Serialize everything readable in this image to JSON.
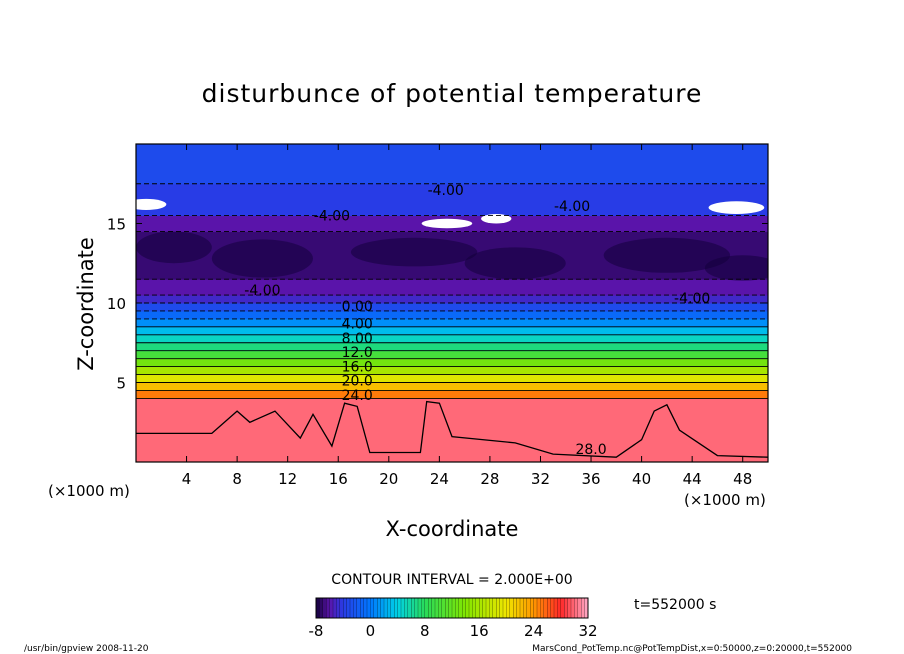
{
  "chart_data": {
    "type": "heatmap",
    "title": "disturbunce of potential temperature",
    "xlabel": "X-coordinate",
    "ylabel": "Z-coordinate",
    "x_unit_label": "(×1000 m)",
    "z_unit_label": "(×1000 m)",
    "xlim": [
      0,
      50
    ],
    "ylim": [
      0,
      20
    ],
    "x_ticks": [
      4,
      8,
      12,
      16,
      20,
      24,
      28,
      32,
      36,
      40,
      44,
      48
    ],
    "x_tick_labels": [
      "4",
      "8",
      "12",
      "16",
      "20",
      "24",
      "28",
      "32",
      "36",
      "40",
      "44",
      "48"
    ],
    "y_ticks": [
      5,
      10,
      15
    ],
    "y_tick_labels": [
      "5",
      "10",
      "15"
    ],
    "contour_interval_label": "CONTOUR INTERVAL = 2.000E+00",
    "contour_labels": [
      {
        "text": "-4.00",
        "x": 24.5,
        "z": 16.8
      },
      {
        "text": "-4.00",
        "x": 34.5,
        "z": 15.8
      },
      {
        "text": "-4.00",
        "x": 15.5,
        "z": 15.2
      },
      {
        "text": "-4.00",
        "x": 10.0,
        "z": 10.5
      },
      {
        "text": "-4.00",
        "x": 44.0,
        "z": 10.0
      },
      {
        "text": "0.00",
        "x": 17.5,
        "z": 9.5
      },
      {
        "text": "4.00",
        "x": 17.5,
        "z": 8.4
      },
      {
        "text": "8.00",
        "x": 17.5,
        "z": 7.5
      },
      {
        "text": "12.0",
        "x": 17.5,
        "z": 6.6
      },
      {
        "text": "16.0",
        "x": 17.5,
        "z": 5.7
      },
      {
        "text": "20.0",
        "x": 17.5,
        "z": 4.8
      },
      {
        "text": "24.0",
        "x": 17.5,
        "z": 3.9
      },
      {
        "text": "28.0",
        "x": 36.0,
        "z": 0.5
      }
    ],
    "strata": [
      {
        "z0": 0.0,
        "z1": 4.0,
        "value": 30
      },
      {
        "z0": 4.0,
        "z1": 4.5,
        "value": 25
      },
      {
        "z0": 4.5,
        "z1": 5.0,
        "value": 22
      },
      {
        "z0": 5.0,
        "z1": 5.5,
        "value": 19
      },
      {
        "z0": 5.5,
        "z1": 6.0,
        "value": 16
      },
      {
        "z0": 6.0,
        "z1": 6.5,
        "value": 13
      },
      {
        "z0": 6.5,
        "z1": 7.0,
        "value": 10
      },
      {
        "z0": 7.0,
        "z1": 7.5,
        "value": 7
      },
      {
        "z0": 7.5,
        "z1": 8.0,
        "value": 5
      },
      {
        "z0": 8.0,
        "z1": 8.5,
        "value": 3
      },
      {
        "z0": 8.5,
        "z1": 9.0,
        "value": 1
      },
      {
        "z0": 9.0,
        "z1": 9.5,
        "value": -1
      },
      {
        "z0": 9.5,
        "z1": 10.0,
        "value": -3
      },
      {
        "z0": 10.0,
        "z1": 10.5,
        "value": -5
      },
      {
        "z0": 10.5,
        "z1": 11.5,
        "value": -6
      },
      {
        "z0": 11.5,
        "z1": 14.5,
        "value": -7
      },
      {
        "z0": 14.5,
        "z1": 15.5,
        "value": -6
      },
      {
        "z0": 15.5,
        "z1": 17.5,
        "value": -4
      },
      {
        "z0": 17.5,
        "z1": 20.0,
        "value": -3
      }
    ],
    "colorbar": {
      "min": -8,
      "max": 32,
      "tick_values": [
        -8,
        0,
        8,
        16,
        24,
        32
      ],
      "tick_labels": [
        "-8",
        "0",
        "8",
        "16",
        "24",
        "32"
      ]
    },
    "grid": false,
    "time_label": "t=552000 s"
  },
  "footer": {
    "left": "/usr/bin/gpview  2008-11-20",
    "right": "MarsCond_PotTemp.nc@PotTempDist,x=0:50000,z=0:20000,t=552000"
  }
}
